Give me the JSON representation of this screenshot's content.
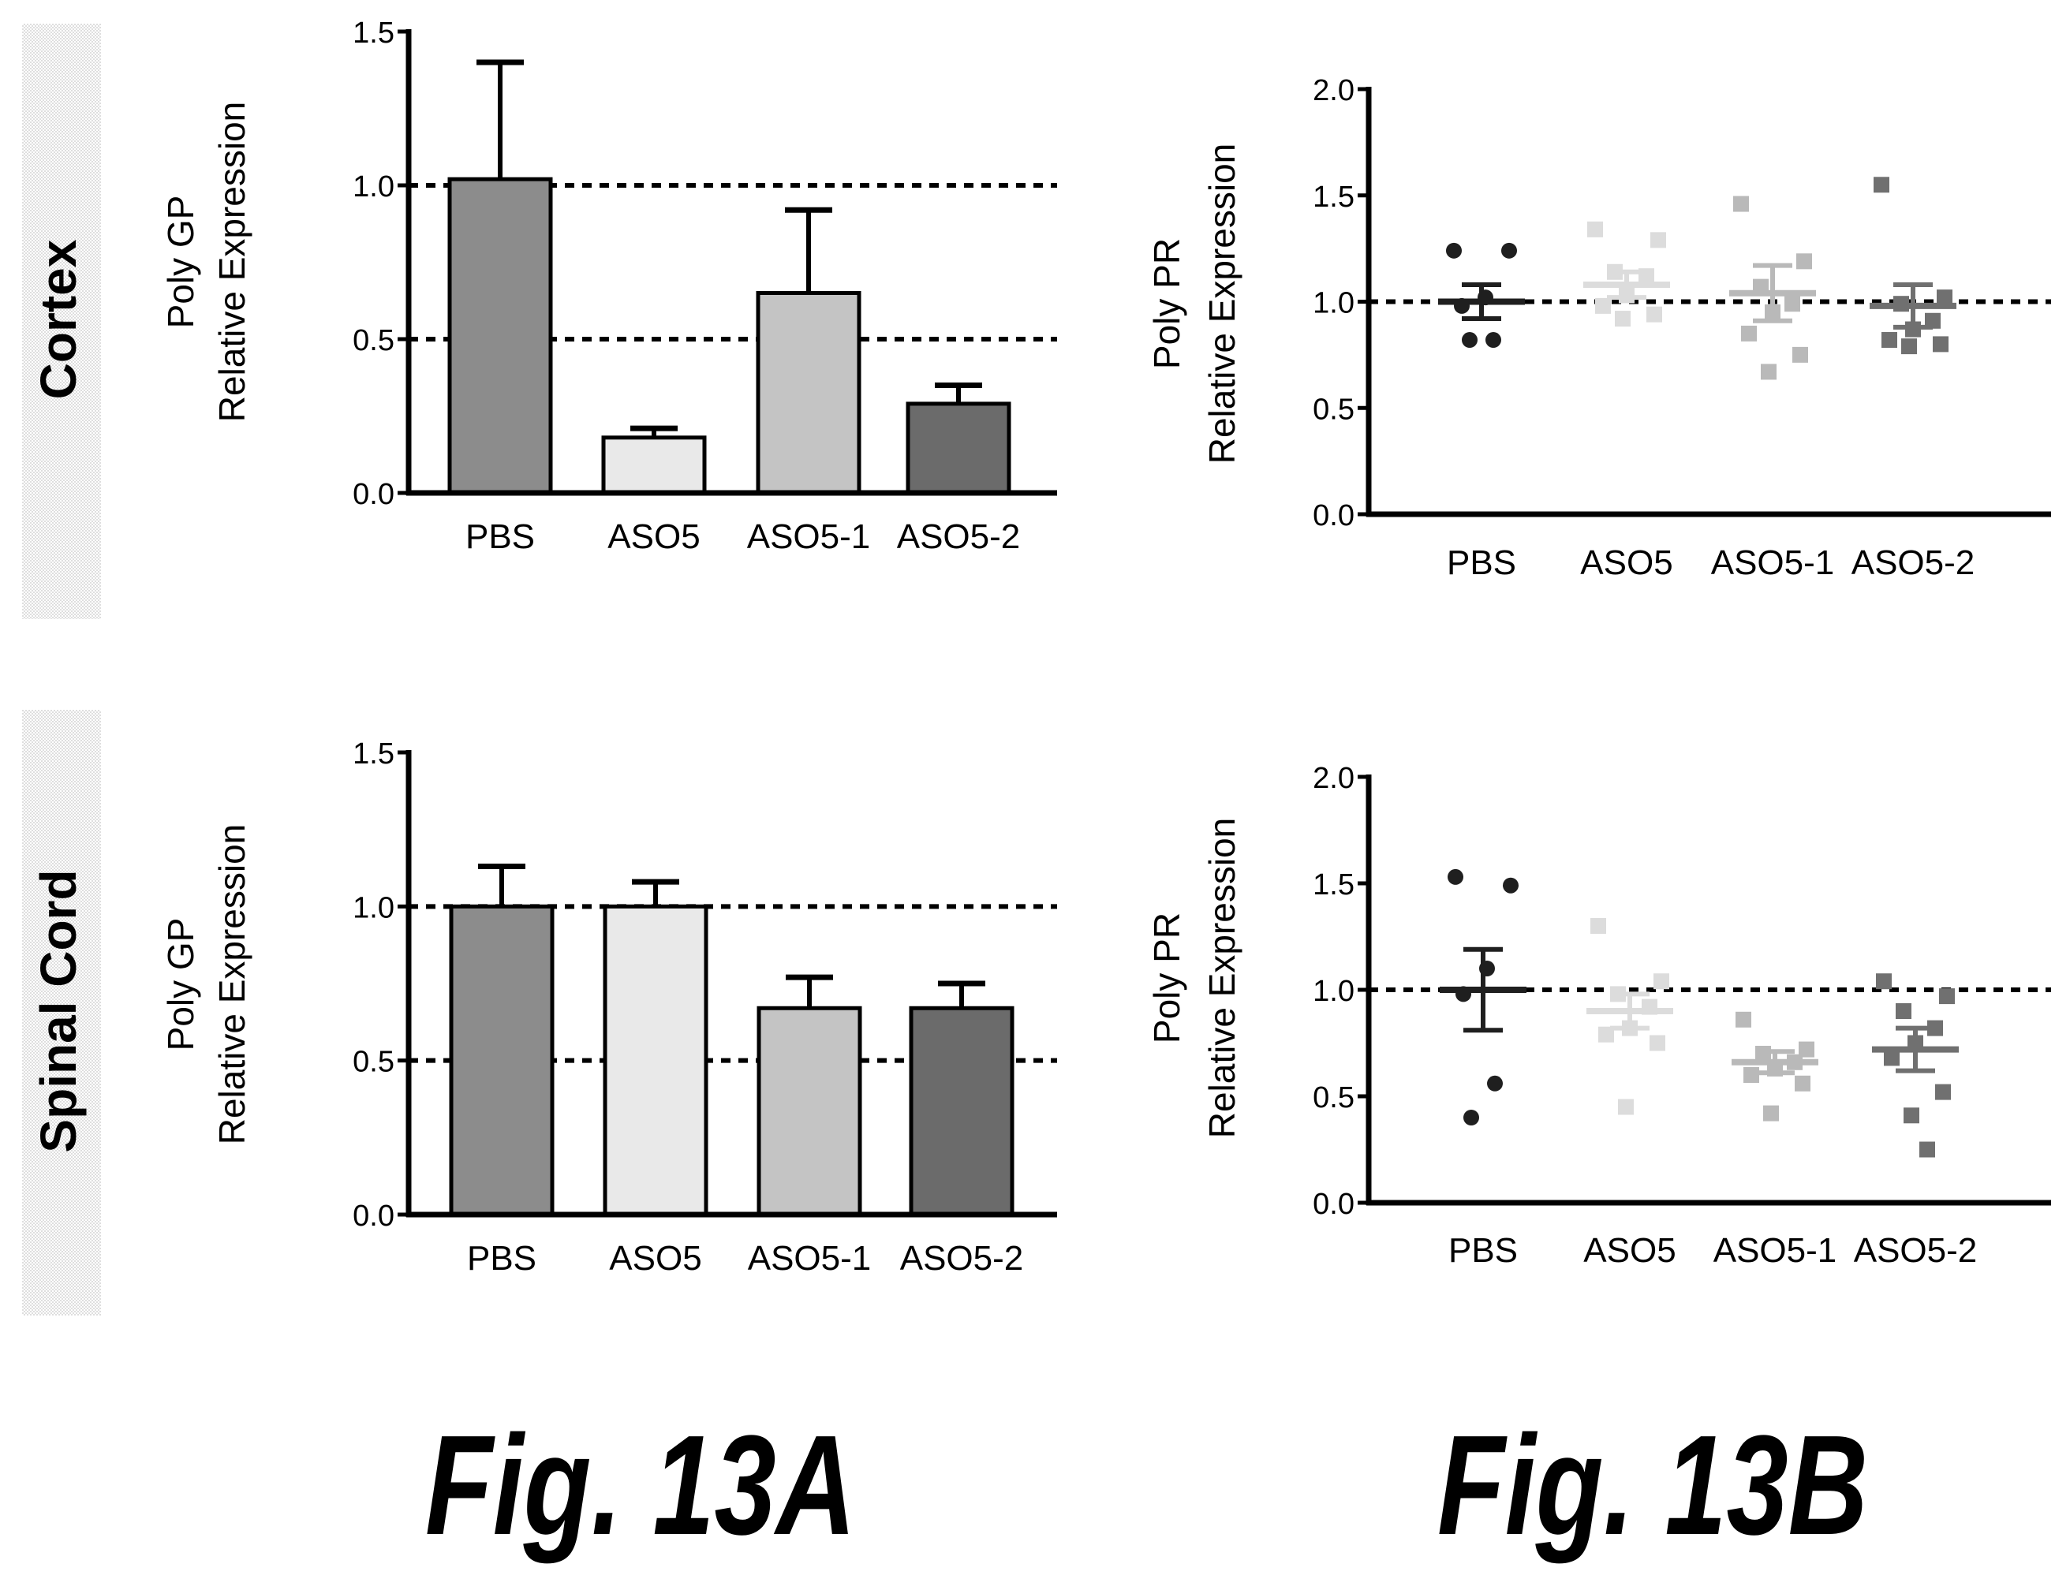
{
  "figure_labels": {
    "a": "Fig. 13A",
    "b": "Fig. 13B"
  },
  "row_labels": {
    "top": "Cortex",
    "bottom": "Spinal Cord"
  },
  "colors": {
    "PBS": "#8c8c8c",
    "ASO5": "#e9e9e9",
    "ASO5-1": "#c4c4c4",
    "ASO5-2": "#6b6b6b",
    "PBS_points": "#1f1f1f",
    "ASO5_points": "#dcdcdc",
    "ASO5-1_points": "#b9b9b9",
    "ASO5-2_points": "#707070",
    "axis": "#000000"
  },
  "chart_data": [
    {
      "id": "cortex-gp",
      "type": "bar",
      "ylabel_line1": "Poly GP",
      "ylabel_line2": "Relative Expression",
      "categories": [
        "PBS",
        "ASO5",
        "ASO5-1",
        "ASO5-2"
      ],
      "values": [
        1.02,
        0.18,
        0.65,
        0.29
      ],
      "errors": [
        0.38,
        0.03,
        0.27,
        0.06
      ],
      "ylim": [
        0,
        1.5
      ],
      "yticks": [
        "0.0",
        "0.5",
        "1.0",
        "1.5"
      ],
      "reference_lines": [
        0.5,
        1.0
      ]
    },
    {
      "id": "cortex-pr",
      "type": "scatter",
      "ylabel_line1": "Poly PR",
      "ylabel_line2": "Relative Expression",
      "categories": [
        "PBS",
        "ASO5",
        "ASO5-1",
        "ASO5-2"
      ],
      "ylim": [
        0,
        2.0
      ],
      "yticks": [
        "0.0",
        "0.5",
        "1.0",
        "1.5",
        "2.0"
      ],
      "reference_lines": [
        1.0
      ],
      "groups": [
        {
          "name": "PBS",
          "marker": "circle",
          "points": [
            1.24,
            1.24,
            1.02,
            0.98,
            0.82,
            0.82
          ],
          "mean": 1.0,
          "sem": 0.08
        },
        {
          "name": "ASO5",
          "marker": "square",
          "points": [
            1.34,
            1.29,
            1.14,
            1.12,
            1.03,
            0.98,
            0.94,
            0.92
          ],
          "mean": 1.08,
          "sem": 0.06
        },
        {
          "name": "ASO5-1",
          "marker": "square",
          "points": [
            1.46,
            1.19,
            1.07,
            0.99,
            0.95,
            0.85,
            0.75,
            0.67
          ],
          "mean": 1.04,
          "sem": 0.13
        },
        {
          "name": "ASO5-2",
          "marker": "square",
          "points": [
            1.55,
            1.02,
            0.99,
            0.91,
            0.87,
            0.82,
            0.8,
            0.79
          ],
          "mean": 0.98,
          "sem": 0.1
        }
      ]
    },
    {
      "id": "spinal-gp",
      "type": "bar",
      "ylabel_line1": "Poly GP",
      "ylabel_line2": "Relative Expression",
      "categories": [
        "PBS",
        "ASO5",
        "ASO5-1",
        "ASO5-2"
      ],
      "values": [
        1.0,
        1.0,
        0.67,
        0.67
      ],
      "errors": [
        0.13,
        0.08,
        0.1,
        0.08
      ],
      "ylim": [
        0,
        1.5
      ],
      "yticks": [
        "0.0",
        "0.5",
        "1.0",
        "1.5"
      ],
      "reference_lines": [
        0.5,
        1.0
      ]
    },
    {
      "id": "spinal-pr",
      "type": "scatter",
      "ylabel_line1": "Poly PR",
      "ylabel_line2": "Relative Expression",
      "categories": [
        "PBS",
        "ASO5",
        "ASO5-1",
        "ASO5-2"
      ],
      "ylim": [
        0,
        2.0
      ],
      "yticks": [
        "0.0",
        "0.5",
        "1.0",
        "1.5",
        "2.0"
      ],
      "reference_lines": [
        1.0
      ],
      "groups": [
        {
          "name": "PBS",
          "marker": "circle",
          "points": [
            1.53,
            1.49,
            1.1,
            0.98,
            0.56,
            0.4
          ],
          "mean": 1.0,
          "sem": 0.19
        },
        {
          "name": "ASO5",
          "marker": "square",
          "points": [
            1.3,
            1.04,
            0.98,
            0.92,
            0.82,
            0.79,
            0.75,
            0.45
          ],
          "mean": 0.9,
          "sem": 0.08
        },
        {
          "name": "ASO5-1",
          "marker": "square",
          "points": [
            0.86,
            0.72,
            0.7,
            0.66,
            0.63,
            0.6,
            0.56,
            0.42
          ],
          "mean": 0.66,
          "sem": 0.05
        },
        {
          "name": "ASO5-2",
          "marker": "square",
          "points": [
            1.04,
            0.97,
            0.9,
            0.82,
            0.75,
            0.68,
            0.52,
            0.41,
            0.25
          ],
          "mean": 0.72,
          "sem": 0.1
        }
      ]
    }
  ]
}
